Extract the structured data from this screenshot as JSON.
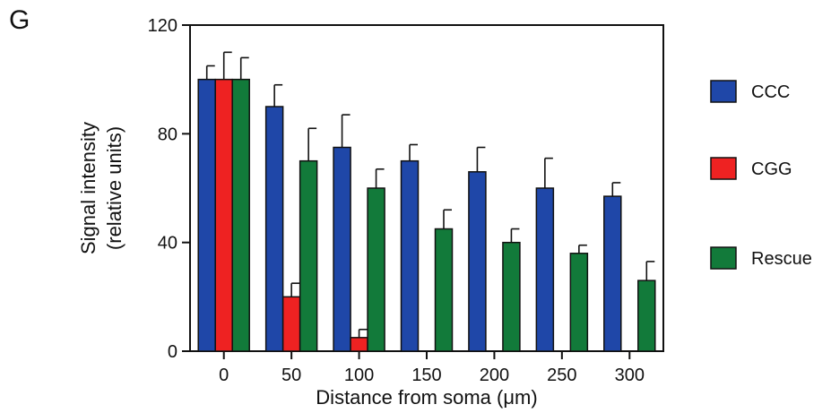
{
  "panel_label": "G",
  "chart_data": {
    "type": "bar",
    "categories": [
      "0",
      "50",
      "100",
      "150",
      "200",
      "250",
      "300"
    ],
    "series": [
      {
        "name": "CCC",
        "color": "#1f47a8",
        "values": [
          100,
          90,
          75,
          70,
          66,
          60,
          57
        ],
        "errors": [
          5,
          8,
          12,
          6,
          9,
          11,
          5
        ]
      },
      {
        "name": "CGG",
        "color": "#ee2222",
        "values": [
          100,
          20,
          5,
          null,
          null,
          null,
          null
        ],
        "errors": [
          10,
          5,
          3,
          null,
          null,
          null,
          null
        ]
      },
      {
        "name": "Rescue",
        "color": "#127a3a",
        "values": [
          100,
          70,
          60,
          45,
          40,
          36,
          26
        ],
        "errors": [
          8,
          12,
          7,
          7,
          5,
          3,
          7
        ]
      }
    ],
    "xlabel": "Distance from soma (μm)",
    "ylabel": [
      "Signal intensity",
      "(relative units)"
    ],
    "ylim": [
      0,
      120
    ],
    "yticks": [
      0,
      40,
      80,
      120
    ],
    "grid": false,
    "legend_position": "right"
  }
}
